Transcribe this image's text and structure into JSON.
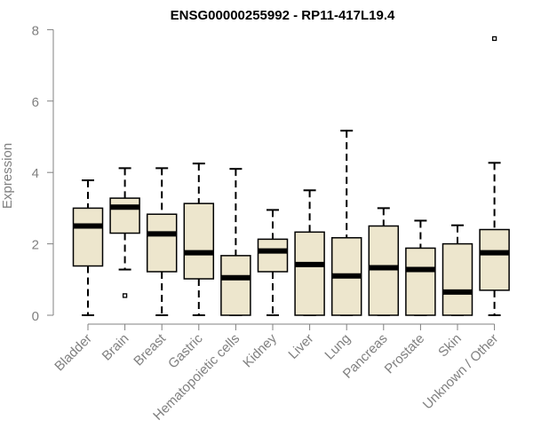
{
  "chart_data": {
    "type": "boxplot",
    "title": "ENSG00000255992 - RP11-417L19.4",
    "xlabel": "",
    "ylabel": "Expression",
    "ylim": [
      0,
      8
    ],
    "yticks": [
      0,
      2,
      4,
      6,
      8
    ],
    "grid": false,
    "legend": "none",
    "colors": {
      "box_fill": "#ede6cd",
      "stroke": "#000000",
      "axis": "#808080",
      "title": "#000000"
    },
    "categories": [
      "Bladder",
      "Brain",
      "Breast",
      "Gastric",
      "Hematopoietic cells",
      "Kidney",
      "Liver",
      "Lung",
      "Pancreas",
      "Prostate",
      "Skin",
      "Unknown / Other"
    ],
    "boxes": [
      {
        "category": "Bladder",
        "min": 0,
        "q1": 1.38,
        "median": 2.5,
        "q3": 3.0,
        "max": 3.78,
        "outliers": []
      },
      {
        "category": "Brain",
        "min": 1.28,
        "q1": 2.3,
        "median": 3.03,
        "q3": 3.28,
        "max": 4.12,
        "outliers": [
          0.55
        ]
      },
      {
        "category": "Breast",
        "min": 0,
        "q1": 1.22,
        "median": 2.28,
        "q3": 2.83,
        "max": 4.12,
        "outliers": []
      },
      {
        "category": "Gastric",
        "min": 0,
        "q1": 1.02,
        "median": 1.75,
        "q3": 3.13,
        "max": 4.25,
        "outliers": []
      },
      {
        "category": "Hematopoietic cells",
        "min": 0,
        "q1": 0,
        "median": 1.05,
        "q3": 1.67,
        "max": 4.1,
        "outliers": []
      },
      {
        "category": "Kidney",
        "min": 0,
        "q1": 1.22,
        "median": 1.8,
        "q3": 2.13,
        "max": 2.95,
        "outliers": []
      },
      {
        "category": "Liver",
        "min": 0,
        "q1": 0,
        "median": 1.42,
        "q3": 2.33,
        "max": 3.5,
        "outliers": []
      },
      {
        "category": "Lung",
        "min": 0,
        "q1": 0,
        "median": 1.1,
        "q3": 2.17,
        "max": 5.17,
        "outliers": []
      },
      {
        "category": "Pancreas",
        "min": 0,
        "q1": 0,
        "median": 1.33,
        "q3": 2.5,
        "max": 3.0,
        "outliers": []
      },
      {
        "category": "Prostate",
        "min": 0,
        "q1": 0,
        "median": 1.28,
        "q3": 1.88,
        "max": 2.65,
        "outliers": []
      },
      {
        "category": "Skin",
        "min": 0,
        "q1": 0,
        "median": 0.65,
        "q3": 2.0,
        "max": 2.52,
        "outliers": []
      },
      {
        "category": "Unknown / Other",
        "min": 0,
        "q1": 0.7,
        "median": 1.75,
        "q3": 2.4,
        "max": 4.27,
        "outliers": [
          7.75
        ]
      }
    ]
  }
}
